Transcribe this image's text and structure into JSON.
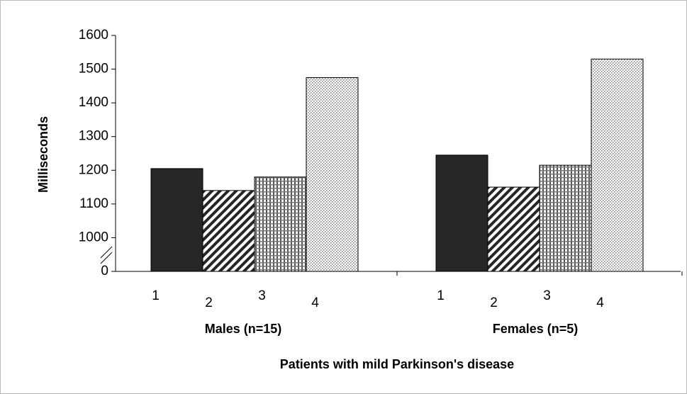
{
  "chart_data": {
    "type": "bar",
    "y_label": "Milliseconds",
    "x_label": "Patients with mild Parkinson's disease",
    "categories": [
      "Males (n=15)",
      "Females (n=5)"
    ],
    "series": [
      {
        "label": "1",
        "pattern": "solid",
        "color": "#262626",
        "values": [
          1205,
          1245
        ]
      },
      {
        "label": "2",
        "pattern": "diagonal",
        "color": "#262626",
        "values": [
          1140,
          1150
        ]
      },
      {
        "label": "3",
        "pattern": "grid",
        "color": "#555555",
        "values": [
          1180,
          1215
        ]
      },
      {
        "label": "4",
        "pattern": "dots",
        "color": "#777777",
        "values": [
          1475,
          1530
        ]
      }
    ],
    "ylim": [
      0,
      1600
    ],
    "y_break": [
      0,
      1000
    ],
    "yticks": [
      0,
      1000,
      1100,
      1200,
      1300,
      1400,
      1500,
      1600
    ]
  }
}
